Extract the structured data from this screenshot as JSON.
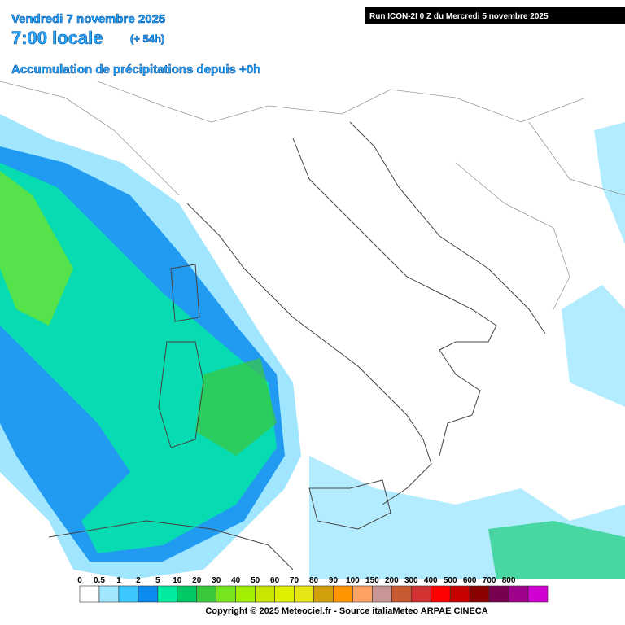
{
  "header": {
    "date": "Vendredi 7 novembre 2025",
    "time": "7:00 locale",
    "lead": "(+ 54h)",
    "subtitle": "Accumulation de précipitations depuis +0h",
    "run": "Run ICON-2I 0 Z du Mercredi 5 novembre 2025"
  },
  "legend": {
    "labels": [
      "0",
      "0.5",
      "1",
      "2",
      "5",
      "10",
      "20",
      "30",
      "40",
      "50",
      "60",
      "70",
      "80",
      "90",
      "100",
      "150",
      "200",
      "300",
      "400",
      "500",
      "600",
      "700",
      "800"
    ],
    "colors": [
      "#ffffff",
      "#a0e6ff",
      "#3cc8ff",
      "#0a8cf0",
      "#00eba0",
      "#00c864",
      "#3cc83c",
      "#78e61e",
      "#a0f000",
      "#c8e600",
      "#dcf000",
      "#e6e614",
      "#d2a00a",
      "#ff9600",
      "#ffa064",
      "#c89696",
      "#c85a32",
      "#d23232",
      "#ff0000",
      "#c80000",
      "#8c0000",
      "#780050",
      "#a0008c",
      "#d200d2"
    ]
  },
  "footer": {
    "copyright": "Copyright © 2025 Meteociel.fr - Source italiaMeteo ARPAE CINECA"
  }
}
